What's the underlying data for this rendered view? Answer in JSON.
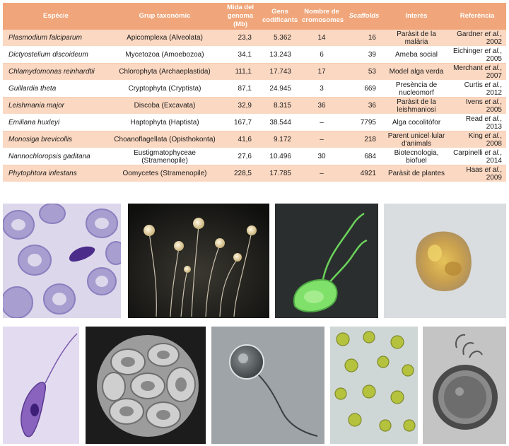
{
  "table": {
    "headers": {
      "especie": "Espècie",
      "grup": "Grup taxonòmic",
      "mida_1": "Mida del",
      "mida_2": "genoma (Mb)",
      "gens_1": "Gens",
      "gens_2": "codificants",
      "crom_1": "Nombre de",
      "crom_2": "cromosomes",
      "scaffolds": "Scaffolds",
      "interes": "Interès",
      "referencia": "Referència"
    },
    "rows": [
      {
        "species": "Plasmodium falciparum",
        "group": "Apicomplexa (Alveolata)",
        "genome": "23,3",
        "genes": "5.362",
        "chromosomes": "14",
        "scaffolds": "16",
        "interest": "Paràsit de la malària",
        "ref_author": "Gardner",
        "ref_etal": " et al.",
        "ref_year": ", 2002"
      },
      {
        "species": "Dictyostelium discoideum",
        "group": "Mycetozoa (Amoebozoa)",
        "genome": "34,1",
        "genes": "13.243",
        "chromosomes": "6",
        "scaffolds": "39",
        "interest": "Ameba social",
        "ref_author": "Eichinger",
        "ref_etal": " et al.",
        "ref_year": ", 2005"
      },
      {
        "species": "Chlamydomonas reinhardtii",
        "group": "Chlorophyta (Archaeplastida)",
        "genome": "111,1",
        "genes": "17.743",
        "chromosomes": "17",
        "scaffolds": "53",
        "interest": "Model alga verda",
        "ref_author": "Merchant",
        "ref_etal": " et al.",
        "ref_year": ", 2007"
      },
      {
        "species": "Guillardia theta",
        "group": "Cryptophyta (Cryptista)",
        "genome": "87,1",
        "genes": "24.945",
        "chromosomes": "3",
        "scaffolds": "669",
        "interest": "Presència de nucleomorf",
        "ref_author": "Curtis",
        "ref_etal": " et al.",
        "ref_year": ", 2012"
      },
      {
        "species": "Leishmania major",
        "group": "Discoba (Excavata)",
        "genome": "32,9",
        "genes": "8.315",
        "chromosomes": "36",
        "scaffolds": "36",
        "interest": "Paràsit de la leishmaniosi",
        "ref_author": "Ivens",
        "ref_etal": " et al.",
        "ref_year": ", 2005"
      },
      {
        "species": "Emiliana huxleyi",
        "group": "Haptophyta (Haptista)",
        "genome": "167,7",
        "genes": "38.544",
        "chromosomes": "–",
        "scaffolds": "7795",
        "interest": "Alga cocolitòfor",
        "ref_author": "Read",
        "ref_etal": " et al.",
        "ref_year": ", 2013"
      },
      {
        "species": "Monosiga brevicollis",
        "group": "Choanoflagellata (Opisthokonta)",
        "genome": "41,6",
        "genes": "9.172",
        "chromosomes": "–",
        "scaffolds": "218",
        "interest": "Parent unicel·lular d'animals",
        "ref_author": "King",
        "ref_etal": " et al.",
        "ref_year": ", 2008"
      },
      {
        "species": "Nannochloropsis gaditana",
        "group": "Eustigmatophyceae (Stramenopile)",
        "genome": "27,6",
        "genes": "10.496",
        "chromosomes": "30",
        "scaffolds": "684",
        "interest": "Biotecnologia, biofuel",
        "ref_author": "Carpinelli",
        "ref_etal": " et al.",
        "ref_year": ", 2014"
      },
      {
        "species": "Phytophtora infestans",
        "group": "Oomycetes (Stramenopile)",
        "genome": "228,5",
        "genes": "17.785",
        "chromosomes": "–",
        "scaffolds": "4921",
        "interest": "Paràsit de plantes",
        "ref_author": "Haas",
        "ref_etal": " et al.",
        "ref_year": ", 2009"
      }
    ]
  },
  "colors": {
    "header_bg": "#f0a67a",
    "row_alt_bg": "#fbd8c2"
  }
}
